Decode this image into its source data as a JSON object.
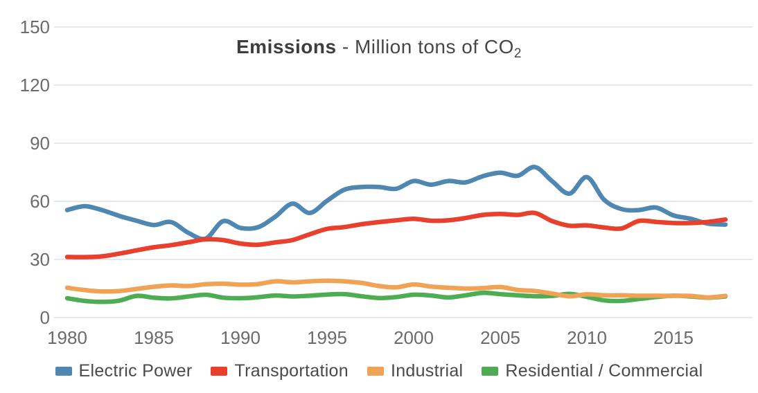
{
  "title": {
    "bold": "Emissions",
    "rest": " - Million tons of CO",
    "sub": "2"
  },
  "colors": {
    "grid": "#d9d9d9",
    "tick_text": "#6b6b6b",
    "title_text": "#3d3d3d",
    "electric_power": "#4e87b2",
    "transportation": "#e8402c",
    "industrial": "#f0a355",
    "residential_commercial": "#4ead53"
  },
  "chart_data": {
    "type": "line",
    "title": "Emissions - Million tons of CO2",
    "xlabel": "",
    "ylabel": "Million tons of CO2",
    "ylim": [
      0,
      150
    ],
    "yticks": [
      0,
      30,
      60,
      90,
      120,
      150
    ],
    "xticks": [
      1980,
      1985,
      1990,
      1995,
      2000,
      2005,
      2010,
      2015
    ],
    "grid": true,
    "legend_position": "bottom",
    "smoothing": "spline",
    "x": [
      1980,
      1981,
      1982,
      1983,
      1984,
      1985,
      1986,
      1987,
      1988,
      1989,
      1990,
      1991,
      1992,
      1993,
      1994,
      1995,
      1996,
      1997,
      1998,
      1999,
      2000,
      2001,
      2002,
      2003,
      2004,
      2005,
      2006,
      2007,
      2008,
      2009,
      2010,
      2011,
      2012,
      2013,
      2014,
      2015,
      2016,
      2017,
      2018
    ],
    "series": [
      {
        "name": "Electric Power",
        "color": "#4e87b2",
        "values": [
          55.5,
          57.5,
          55.5,
          52.5,
          50,
          47.8,
          49.3,
          43.7,
          40.8,
          49.8,
          46.3,
          46.6,
          52,
          58.8,
          54,
          60.3,
          66,
          67.4,
          67.4,
          66.5,
          70.5,
          68.6,
          70.5,
          69.8,
          73,
          74.8,
          73.2,
          77.7,
          70.4,
          64,
          72.5,
          60.8,
          56,
          55.5,
          56.8,
          52.7,
          51,
          48.5,
          48
        ]
      },
      {
        "name": "Transportation",
        "color": "#e8402c",
        "values": [
          31.3,
          31.2,
          31.6,
          33,
          34.7,
          36.3,
          37.4,
          38.9,
          40.4,
          40,
          38.2,
          37.6,
          38.8,
          40,
          43,
          45.8,
          46.7,
          48.2,
          49.3,
          50.2,
          51,
          50,
          50.2,
          51.4,
          53,
          53.5,
          53,
          54,
          49.8,
          47.4,
          47.6,
          46.5,
          46,
          49.9,
          49.4,
          48.8,
          48.8,
          49.4,
          50.6
        ]
      },
      {
        "name": "Industrial",
        "color": "#f0a355",
        "values": [
          15.4,
          14.2,
          13.5,
          13.7,
          14.8,
          15.9,
          16.6,
          16.3,
          17.2,
          17.5,
          17,
          17.3,
          18.7,
          18.2,
          18.7,
          19,
          18.7,
          17.9,
          16.3,
          15.6,
          17.1,
          16,
          15.4,
          15,
          15.2,
          15.8,
          14.3,
          13.7,
          12.4,
          11,
          12,
          11.5,
          11.5,
          11.3,
          11.3,
          11.2,
          11.2,
          10.4,
          11.2
        ]
      },
      {
        "name": "Residential / Commercial",
        "color": "#4ead53",
        "values": [
          10,
          8.6,
          8.1,
          8.7,
          11.2,
          10.3,
          9.9,
          10.9,
          11.8,
          10.3,
          10,
          10.5,
          11.4,
          10.9,
          11.3,
          11.9,
          12.1,
          11,
          10.1,
          10.6,
          11.8,
          11.4,
          10.4,
          11.5,
          12.8,
          12.1,
          11.5,
          11,
          11.2,
          12.2,
          10.7,
          8.9,
          8.6,
          9.6,
          10.6,
          11.3,
          10.9,
          10.3,
          10.9
        ]
      }
    ]
  }
}
